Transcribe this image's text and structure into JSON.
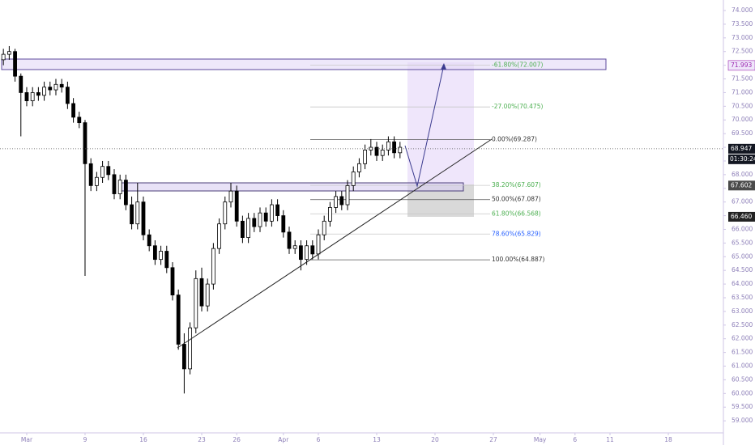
{
  "chart_data": {
    "type": "candlestick",
    "x": [
      -2.0,
      -1.5,
      -1.0,
      -0.5,
      0,
      0.5,
      1.0,
      1.5,
      2.0,
      2.5,
      3.0,
      3.5,
      4.0,
      4.5,
      5.0,
      5.5,
      6.0,
      6.5,
      7.0,
      7.5,
      8.0,
      8.5,
      9.0,
      9.5,
      10.0,
      10.5,
      11.0,
      11.5,
      12.0,
      12.5,
      13.0,
      13.5,
      14.0,
      14.5,
      15.0,
      15.5,
      16.0,
      16.5,
      17.0,
      17.5,
      18.0,
      18.5,
      19.0,
      19.5,
      20.0,
      20.5,
      21.0,
      21.5,
      22.0,
      22.5,
      23.0,
      23.5,
      24.0,
      24.5,
      25.0,
      25.5,
      26.0,
      26.5,
      27.0,
      27.5,
      28.0,
      28.5,
      29.0,
      29.5,
      30.0,
      30.5,
      31.0,
      31.5,
      32.0
    ],
    "open": [
      72.2,
      72.4,
      72.5,
      71.6,
      71.0,
      70.7,
      71.0,
      70.9,
      71.2,
      71.1,
      71.3,
      71.2,
      70.6,
      70.1,
      69.9,
      68.4,
      67.6,
      67.9,
      68.3,
      68.0,
      67.3,
      67.8,
      66.9,
      66.2,
      67.0,
      65.8,
      65.4,
      64.9,
      65.2,
      64.6,
      63.6,
      61.8,
      60.9,
      62.4,
      64.2,
      63.2,
      64.0,
      65.3,
      66.2,
      67.0,
      67.4,
      66.3,
      65.7,
      66.4,
      66.1,
      66.6,
      66.3,
      66.9,
      66.5,
      65.9,
      65.3,
      65.4,
      64.9,
      65.4,
      65.1,
      65.8,
      66.3,
      66.8,
      67.2,
      66.9,
      67.6,
      68.1,
      68.4,
      68.9,
      69.0,
      68.7,
      68.9,
      69.2,
      68.8
    ],
    "high": [
      72.6,
      72.7,
      72.6,
      71.7,
      71.2,
      71.2,
      71.2,
      71.4,
      71.4,
      71.5,
      71.5,
      71.4,
      70.8,
      70.3,
      70.0,
      68.6,
      68.1,
      68.5,
      68.5,
      68.2,
      68.0,
      68.0,
      67.2,
      67.7,
      67.2,
      66.0,
      65.6,
      65.4,
      65.4,
      64.8,
      63.8,
      62.2,
      62.6,
      64.5,
      64.6,
      64.2,
      65.5,
      66.4,
      67.2,
      67.7,
      67.6,
      66.5,
      66.6,
      66.6,
      66.8,
      66.8,
      67.1,
      67.1,
      66.7,
      66.1,
      65.6,
      65.6,
      65.6,
      65.6,
      66.0,
      66.5,
      67.0,
      67.4,
      67.4,
      67.8,
      68.3,
      68.6,
      69.1,
      69.3,
      69.2,
      69.1,
      69.4,
      69.4,
      69.2
    ],
    "low": [
      72.0,
      72.2,
      71.4,
      69.4,
      70.5,
      70.5,
      70.7,
      70.7,
      70.9,
      70.9,
      71.0,
      70.4,
      69.9,
      69.7,
      64.3,
      67.4,
      67.4,
      67.7,
      67.8,
      67.1,
      67.1,
      66.7,
      66.0,
      66.0,
      65.6,
      65.2,
      64.7,
      64.7,
      64.4,
      63.4,
      61.6,
      60.0,
      60.7,
      62.2,
      63.0,
      63.0,
      63.8,
      65.1,
      66.0,
      66.8,
      66.1,
      65.5,
      65.5,
      65.9,
      65.9,
      66.1,
      66.1,
      66.3,
      65.7,
      65.1,
      65.1,
      64.5,
      64.7,
      64.9,
      64.9,
      65.6,
      66.1,
      66.6,
      66.7,
      66.7,
      67.4,
      67.9,
      68.2,
      68.7,
      68.5,
      68.5,
      68.7,
      68.6,
      68.6
    ],
    "close": [
      72.4,
      72.5,
      71.6,
      71.0,
      70.7,
      71.0,
      70.9,
      71.2,
      71.1,
      71.3,
      71.2,
      70.6,
      70.1,
      69.9,
      68.4,
      67.6,
      67.9,
      68.3,
      68.0,
      67.3,
      67.8,
      66.9,
      66.2,
      67.0,
      65.8,
      65.4,
      64.9,
      65.2,
      64.6,
      63.6,
      61.8,
      60.9,
      62.4,
      64.2,
      63.2,
      64.0,
      65.3,
      66.2,
      67.0,
      67.4,
      66.3,
      65.7,
      66.4,
      66.1,
      66.6,
      66.3,
      66.9,
      66.5,
      65.9,
      65.3,
      65.4,
      64.9,
      65.4,
      65.1,
      65.8,
      66.3,
      66.8,
      67.2,
      66.9,
      67.6,
      68.1,
      68.4,
      68.9,
      69.0,
      68.7,
      68.9,
      69.2,
      68.8,
      69.0
    ],
    "up_color": "#ffffff",
    "down_color": "#000000",
    "xlim": [
      -2.29,
      59.72
    ],
    "ylim": [
      58.56,
      74.385
    ],
    "xticks": [
      {
        "value": 0,
        "label": "Mar"
      },
      {
        "value": 5,
        "label": "9"
      },
      {
        "value": 10,
        "label": "16"
      },
      {
        "value": 15,
        "label": "23"
      },
      {
        "value": 18,
        "label": "26"
      },
      {
        "value": 22,
        "label": "Apr"
      },
      {
        "value": 25,
        "label": "6"
      },
      {
        "value": 30,
        "label": "13"
      },
      {
        "value": 35,
        "label": "20"
      },
      {
        "value": 40,
        "label": "27"
      },
      {
        "value": 44,
        "label": "May"
      },
      {
        "value": 47,
        "label": "6"
      },
      {
        "value": 50,
        "label": "11"
      },
      {
        "value": 55,
        "label": "18"
      }
    ],
    "yticks": [
      {
        "value": 74,
        "label": "74.000"
      },
      {
        "value": 73.5,
        "label": "73.500"
      },
      {
        "value": 73,
        "label": "73.000"
      },
      {
        "value": 72.5,
        "label": "72.500"
      },
      {
        "value": 72,
        "label": "72.000"
      },
      {
        "value": 71.5,
        "label": "71.500"
      },
      {
        "value": 71,
        "label": "71.000"
      },
      {
        "value": 70.5,
        "label": "70.500"
      },
      {
        "value": 70,
        "label": "70.000"
      },
      {
        "value": 69.5,
        "label": "69.500"
      },
      {
        "value": 69,
        "label": "69.000"
      },
      {
        "value": 68.5,
        "label": "68.500"
      },
      {
        "value": 68,
        "label": "68.000"
      },
      {
        "value": 67.5,
        "label": "67.500"
      },
      {
        "value": 67,
        "label": "67.000"
      },
      {
        "value": 66.5,
        "label": "66.500"
      },
      {
        "value": 66,
        "label": "66.000"
      },
      {
        "value": 65.5,
        "label": "65.500"
      },
      {
        "value": 65,
        "label": "65.000"
      },
      {
        "value": 64.5,
        "label": "64.500"
      },
      {
        "value": 64,
        "label": "64.000"
      },
      {
        "value": 63.5,
        "label": "63.500"
      },
      {
        "value": 63,
        "label": "63.000"
      },
      {
        "value": 62.5,
        "label": "62.500"
      },
      {
        "value": 62,
        "label": "62.000"
      },
      {
        "value": 61.5,
        "label": "61.500"
      },
      {
        "value": 61,
        "label": "61.000"
      },
      {
        "value": 60.5,
        "label": "60.500"
      },
      {
        "value": 60,
        "label": "60.000"
      },
      {
        "value": 59.5,
        "label": "59.500"
      },
      {
        "value": 59,
        "label": "59.000"
      }
    ],
    "fib_levels": [
      {
        "value": 72.007,
        "label": "-61.80%(72.007)",
        "color": "#4caf50"
      },
      {
        "value": 70.475,
        "label": "-27.00%(70.475)",
        "color": "#4caf50"
      },
      {
        "value": 69.287,
        "label": "0.00%(69.287)",
        "color": "#333333"
      },
      {
        "value": 67.607,
        "label": "38.20%(67.607)",
        "color": "#4caf50"
      },
      {
        "value": 67.087,
        "label": "50.00%(67.087)",
        "color": "#333333"
      },
      {
        "value": 66.568,
        "label": "61.80%(66.568)",
        "color": "#4caf50"
      },
      {
        "value": 65.829,
        "label": "78.60%(65.829)",
        "color": "#2962ff"
      },
      {
        "value": 64.887,
        "label": "100.00%(64.887)",
        "color": "#333333"
      }
    ],
    "price_tags": [
      {
        "value": 71.993,
        "label": "71.993",
        "color": "#9c27b0",
        "background": "#efe6fa"
      },
      {
        "value": 68.947,
        "label": "68.947",
        "color": "#ffffff",
        "background": "#131722"
      },
      {
        "value": 67.602,
        "label": "67.602",
        "color": "#ffffff",
        "background": "#4a4a4a"
      },
      {
        "value": 66.46,
        "label": "66.460",
        "color": "#ffffff",
        "background": "#222222"
      }
    ],
    "countdown": "01:30:24"
  }
}
